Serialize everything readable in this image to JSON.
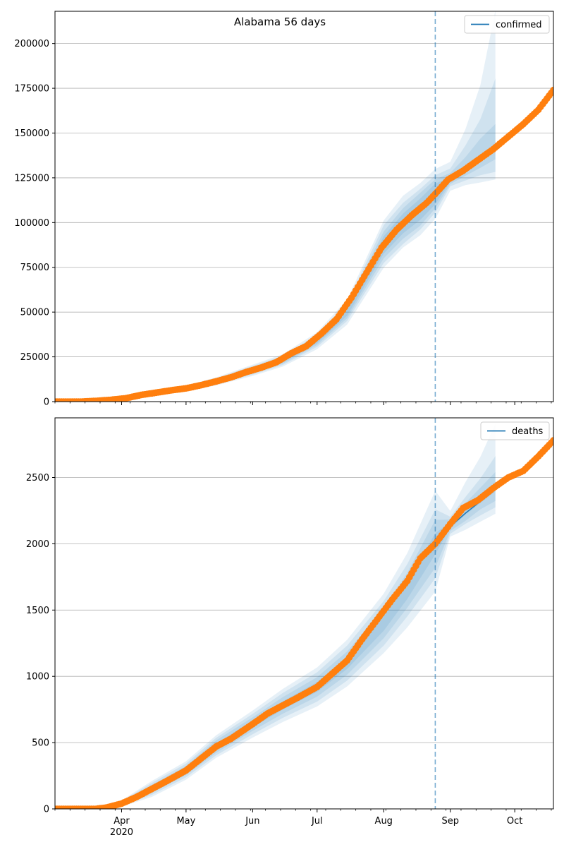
{
  "figure": {
    "title": "Alabama 56 days"
  },
  "colors": {
    "band": "#1f77b4",
    "observed": "#ff7f0e",
    "fit": "#1f77b4",
    "cutoff": "#1f77b4",
    "grid": "#b0b0b0"
  },
  "chart_data": [
    {
      "type": "scatter",
      "name": "confirmed-panel",
      "title": "Alabama 56 days",
      "xlabel": "",
      "ylabel": "",
      "legend": {
        "entries": [
          "confirmed"
        ],
        "placement": "top-right"
      },
      "grid": "y",
      "x_range": [
        "2020-03-01",
        "2020-10-19"
      ],
      "ylim": [
        0,
        218000
      ],
      "yticks": [
        0,
        25000,
        50000,
        75000,
        100000,
        125000,
        150000,
        175000,
        200000
      ],
      "show_xtick_labels": false,
      "cutoff_date": "2020-08-25",
      "forecast_end": "2020-09-22",
      "observed": {
        "dates": [
          "2020-03-01",
          "2020-03-13",
          "2020-03-20",
          "2020-03-27",
          "2020-04-03",
          "2020-04-10",
          "2020-04-17",
          "2020-04-24",
          "2020-05-01",
          "2020-05-08",
          "2020-05-15",
          "2020-05-22",
          "2020-05-29",
          "2020-06-05",
          "2020-06-12",
          "2020-06-19",
          "2020-06-26",
          "2020-07-03",
          "2020-07-10",
          "2020-07-17",
          "2020-07-24",
          "2020-07-31",
          "2020-08-07",
          "2020-08-14",
          "2020-08-21",
          "2020-08-25",
          "2020-08-31",
          "2020-09-07",
          "2020-09-14",
          "2020-09-21",
          "2020-09-28",
          "2020-10-05",
          "2020-10-12",
          "2020-10-19"
        ],
        "values": [
          0,
          0,
          400,
          1000,
          1900,
          3700,
          5000,
          6300,
          7400,
          9200,
          11300,
          13600,
          16500,
          19000,
          22000,
          27000,
          31000,
          38000,
          46000,
          58000,
          72000,
          86000,
          96000,
          104000,
          111000,
          116000,
          124000,
          129000,
          135000,
          141000,
          148000,
          155000,
          163000,
          174000
        ]
      },
      "fit": {
        "dates": [
          "2020-08-25",
          "2020-08-31",
          "2020-09-07",
          "2020-09-14",
          "2020-09-22"
        ],
        "values": [
          116000,
          123000,
          129000,
          135000,
          141000
        ]
      },
      "bands": {
        "dates": [
          "2020-05-01",
          "2020-05-15",
          "2020-06-01",
          "2020-06-15",
          "2020-07-01",
          "2020-07-15",
          "2020-08-01",
          "2020-08-10",
          "2020-08-18",
          "2020-08-25",
          "2020-09-01",
          "2020-09-08",
          "2020-09-15",
          "2020-09-22"
        ],
        "center": [
          7400,
          11300,
          17500,
          23000,
          34000,
          50000,
          88000,
          100000,
          108000,
          116000,
          124000,
          130000,
          136000,
          141000
        ],
        "levels": [
          {
            "lower_frac": [
              0.92,
              0.93,
              0.94,
              0.95,
              0.96,
              0.96,
              0.94,
              0.94,
              0.94,
              0.95,
              0.99,
              0.99,
              0.99,
              0.99
            ],
            "upper_frac": [
              1.08,
              1.07,
              1.06,
              1.05,
              1.04,
              1.05,
              1.05,
              1.05,
              1.05,
              1.05,
              1.01,
              1.01,
              1.01,
              1.01
            ]
          },
          {
            "lower_frac": [
              0.88,
              0.89,
              0.9,
              0.92,
              0.93,
              0.93,
              0.91,
              0.91,
              0.91,
              0.93,
              0.98,
              0.97,
              0.96,
              0.96
            ],
            "upper_frac": [
              1.12,
              1.11,
              1.1,
              1.08,
              1.07,
              1.08,
              1.08,
              1.08,
              1.08,
              1.07,
              1.03,
              1.05,
              1.08,
              1.1
            ]
          },
          {
            "lower_frac": [
              0.84,
              0.85,
              0.86,
              0.89,
              0.9,
              0.9,
              0.88,
              0.88,
              0.89,
              0.91,
              0.97,
              0.95,
              0.93,
              0.91
            ],
            "upper_frac": [
              1.16,
              1.15,
              1.14,
              1.11,
              1.1,
              1.1,
              1.12,
              1.11,
              1.1,
              1.09,
              1.05,
              1.1,
              1.16,
              1.28
            ]
          },
          {
            "lower_frac": [
              0.78,
              0.8,
              0.82,
              0.85,
              0.86,
              0.86,
              0.85,
              0.86,
              0.86,
              0.88,
              0.95,
              0.93,
              0.9,
              0.88
            ],
            "upper_frac": [
              1.22,
              1.2,
              1.18,
              1.15,
              1.14,
              1.14,
              1.15,
              1.15,
              1.13,
              1.12,
              1.08,
              1.17,
              1.3,
              1.55
            ]
          }
        ]
      }
    },
    {
      "type": "scatter",
      "name": "deaths-panel",
      "title": "",
      "xlabel": "",
      "ylabel": "",
      "legend": {
        "entries": [
          "deaths"
        ],
        "placement": "top-right"
      },
      "grid": "y",
      "x_range": [
        "2020-03-01",
        "2020-10-19"
      ],
      "ylim": [
        0,
        2950
      ],
      "yticks": [
        0,
        500,
        1000,
        1500,
        2000,
        2500
      ],
      "show_xtick_labels": true,
      "xtick_labels": [
        {
          "date": "2020-04-01",
          "label": "Apr",
          "year": "2020"
        },
        {
          "date": "2020-05-01",
          "label": "May"
        },
        {
          "date": "2020-06-01",
          "label": "Jun"
        },
        {
          "date": "2020-07-01",
          "label": "Jul"
        },
        {
          "date": "2020-08-01",
          "label": "Aug"
        },
        {
          "date": "2020-09-01",
          "label": "Sep"
        },
        {
          "date": "2020-10-01",
          "label": "Oct"
        }
      ],
      "cutoff_date": "2020-08-25",
      "forecast_end": "2020-09-22",
      "observed": {
        "dates": [
          "2020-03-01",
          "2020-03-20",
          "2020-03-25",
          "2020-04-01",
          "2020-04-08",
          "2020-04-15",
          "2020-04-22",
          "2020-05-01",
          "2020-05-08",
          "2020-05-15",
          "2020-05-22",
          "2020-06-01",
          "2020-06-08",
          "2020-06-15",
          "2020-06-22",
          "2020-07-01",
          "2020-07-08",
          "2020-07-15",
          "2020-07-22",
          "2020-07-29",
          "2020-08-05",
          "2020-08-12",
          "2020-08-18",
          "2020-08-25",
          "2020-09-01",
          "2020-09-07",
          "2020-09-14",
          "2020-09-21",
          "2020-09-28",
          "2020-10-05",
          "2020-10-12",
          "2020-10-19"
        ],
        "values": [
          0,
          0,
          10,
          40,
          90,
          150,
          210,
          290,
          380,
          470,
          530,
          640,
          720,
          780,
          840,
          920,
          1020,
          1120,
          1280,
          1430,
          1580,
          1720,
          1890,
          2000,
          2150,
          2270,
          2330,
          2420,
          2500,
          2550,
          2660,
          2780
        ]
      },
      "fit": {
        "dates": [
          "2020-08-25",
          "2020-09-01",
          "2020-09-08",
          "2020-09-15",
          "2020-09-22"
        ],
        "values": [
          2000,
          2130,
          2230,
          2320,
          2420
        ]
      },
      "bands": {
        "dates": [
          "2020-04-01",
          "2020-04-15",
          "2020-05-01",
          "2020-05-15",
          "2020-06-01",
          "2020-06-15",
          "2020-07-01",
          "2020-07-15",
          "2020-08-01",
          "2020-08-12",
          "2020-08-25",
          "2020-09-01",
          "2020-09-08",
          "2020-09-15",
          "2020-09-22"
        ],
        "center": [
          40,
          150,
          290,
          470,
          640,
          780,
          920,
          1100,
          1400,
          1650,
          2000,
          2140,
          2240,
          2330,
          2420
        ],
        "levels": [
          {
            "lower_frac": [
              0.85,
              0.9,
              0.94,
              0.95,
              0.96,
              0.96,
              0.96,
              0.96,
              0.96,
              0.96,
              0.96,
              0.99,
              0.99,
              0.99,
              0.99
            ],
            "upper_frac": [
              1.15,
              1.1,
              1.06,
              1.05,
              1.04,
              1.04,
              1.04,
              1.04,
              1.04,
              1.04,
              1.04,
              1.01,
              1.01,
              1.01,
              1.01
            ]
          },
          {
            "lower_frac": [
              0.7,
              0.8,
              0.88,
              0.9,
              0.92,
              0.92,
              0.92,
              0.92,
              0.92,
              0.92,
              0.91,
              0.98,
              0.97,
              0.97,
              0.96
            ],
            "upper_frac": [
              1.3,
              1.2,
              1.12,
              1.1,
              1.08,
              1.08,
              1.08,
              1.08,
              1.08,
              1.08,
              1.09,
              1.02,
              1.03,
              1.04,
              1.05
            ]
          },
          {
            "lower_frac": [
              0.55,
              0.7,
              0.82,
              0.86,
              0.88,
              0.88,
              0.88,
              0.88,
              0.88,
              0.88,
              0.87,
              0.97,
              0.96,
              0.95,
              0.94
            ],
            "upper_frac": [
              1.45,
              1.3,
              1.18,
              1.14,
              1.12,
              1.12,
              1.12,
              1.12,
              1.12,
              1.12,
              1.13,
              1.03,
              1.05,
              1.07,
              1.1
            ]
          },
          {
            "lower_frac": [
              0.4,
              0.6,
              0.76,
              0.82,
              0.84,
              0.84,
              0.84,
              0.84,
              0.84,
              0.83,
              0.82,
              0.96,
              0.94,
              0.93,
              0.92
            ],
            "upper_frac": [
              1.6,
              1.4,
              1.24,
              1.18,
              1.16,
              1.16,
              1.16,
              1.16,
              1.16,
              1.17,
              1.2,
              1.05,
              1.1,
              1.14,
              1.2
            ]
          }
        ]
      }
    }
  ]
}
